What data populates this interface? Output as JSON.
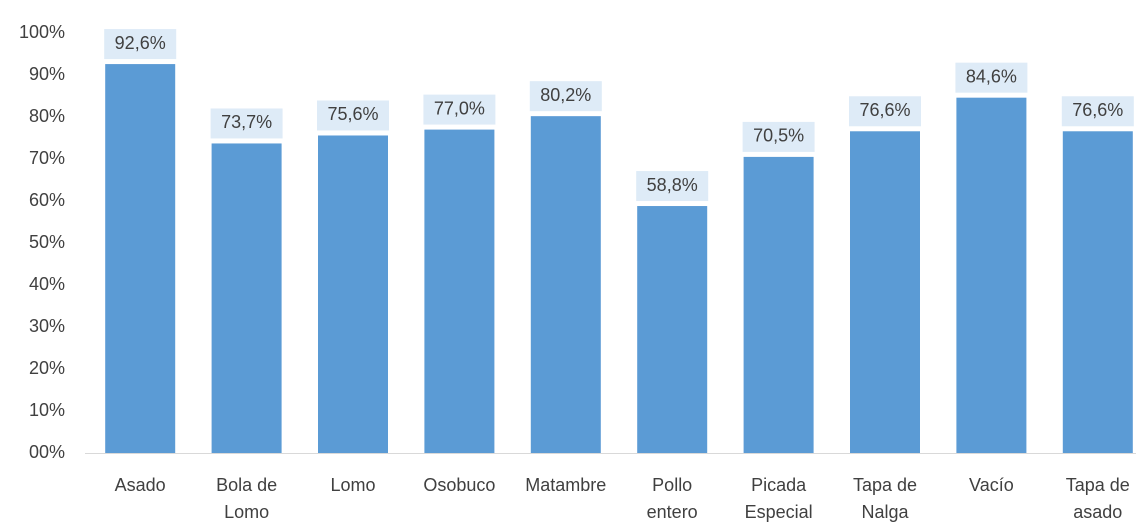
{
  "chart_data": {
    "type": "bar",
    "categories": [
      "Asado",
      "Bola de Lomo",
      "Lomo",
      "Osobuco",
      "Matambre",
      "Pollo entero",
      "Picada Especial",
      "Tapa de Nalga",
      "Vacío",
      "Tapa de asado"
    ],
    "values": [
      92.6,
      73.7,
      75.6,
      77.0,
      80.2,
      58.8,
      70.5,
      76.6,
      84.6,
      76.6
    ],
    "value_labels": [
      "92,6%",
      "73,7%",
      "75,6%",
      "77,0%",
      "80,2%",
      "58,8%",
      "70,5%",
      "76,6%",
      "84,6%",
      "76,6%"
    ],
    "color": "#5b9bd5",
    "ylim": [
      0,
      100
    ],
    "yticks": [
      {
        "value": 0,
        "label": "00%"
      },
      {
        "value": 10,
        "label": "10%"
      },
      {
        "value": 20,
        "label": "20%"
      },
      {
        "value": 30,
        "label": "30%"
      },
      {
        "value": 40,
        "label": "40%"
      },
      {
        "value": 50,
        "label": "50%"
      },
      {
        "value": 60,
        "label": "60%"
      },
      {
        "value": 70,
        "label": "70%"
      },
      {
        "value": 80,
        "label": "80%"
      },
      {
        "value": 90,
        "label": "90%"
      },
      {
        "value": 100,
        "label": "100%"
      }
    ],
    "grid": false
  }
}
